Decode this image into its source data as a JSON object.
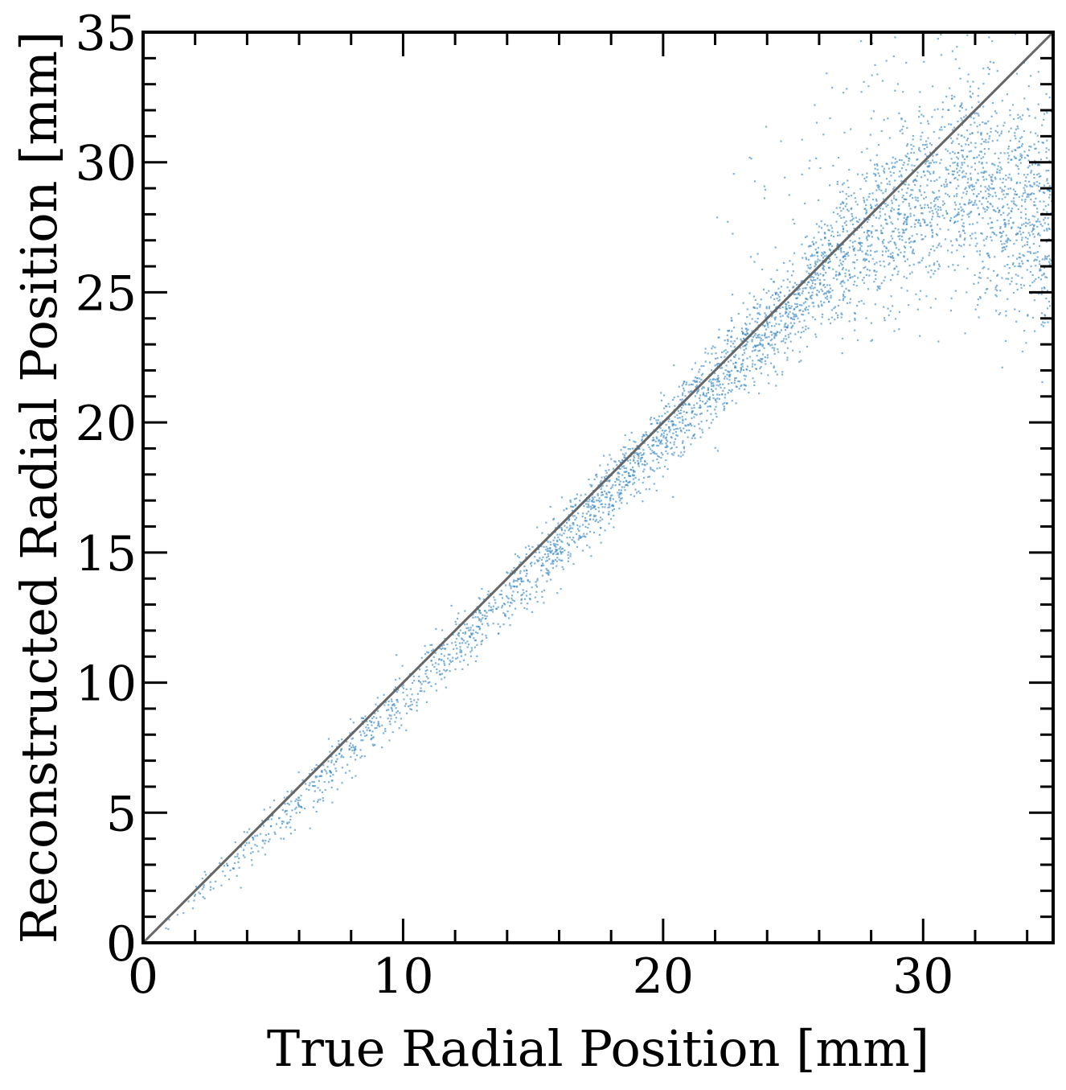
{
  "chart_data": {
    "type": "scatter",
    "xlabel": "True Radial Position [mm]",
    "ylabel": "Reconstructed Radial Position [mm]",
    "xlim": [
      0,
      35
    ],
    "ylim": [
      0,
      35
    ],
    "x_ticks": [
      0,
      10,
      20,
      30
    ],
    "y_ticks": [
      0,
      5,
      10,
      15,
      20,
      25,
      30,
      35
    ],
    "x_minor_step": 2,
    "y_minor_step": 1,
    "tick_direction": "in",
    "grid": false,
    "legend": "none",
    "point_color": "#3b8bc4",
    "line_color": "#666666",
    "reference_line": {
      "x": [
        0,
        35
      ],
      "y": [
        0,
        35
      ]
    },
    "trend": {
      "description": "Reconstructed position tracks true position (slightly below the diagonal up to ~27 mm), then saturates around 28-30 mm with wide scatter for true positions above ~28 mm.",
      "x": [
        0,
        5,
        10,
        15,
        20,
        25,
        28,
        30,
        32,
        35
      ],
      "y_median": [
        0,
        4.6,
        9.5,
        14.4,
        19.5,
        24.6,
        27.5,
        28.8,
        29.0,
        27.5
      ],
      "y_spread": [
        0.3,
        0.6,
        0.8,
        0.9,
        1.0,
        1.3,
        2.2,
        2.6,
        2.8,
        3.2
      ]
    }
  }
}
